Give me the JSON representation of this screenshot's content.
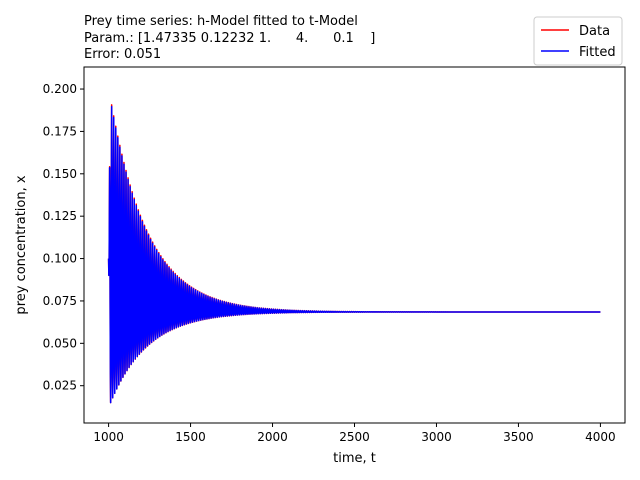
{
  "chart_data": {
    "type": "line",
    "title_lines": [
      "Prey time series: h-Model fitted to t-Model",
      "Param.: [1.47335 0.12232 1.      4.      0.1    ]",
      "Error: 0.051"
    ],
    "xlabel": "time, t",
    "ylabel": "prey concentration, x",
    "xlim": [
      850,
      4150
    ],
    "ylim": [
      0.003,
      0.213
    ],
    "xticks": [
      1000,
      1500,
      2000,
      2500,
      3000,
      3500,
      4000
    ],
    "yticks": [
      0.025,
      0.05,
      0.075,
      0.1,
      0.125,
      0.15,
      0.175,
      0.2
    ],
    "xtick_labels": [
      "1000",
      "1500",
      "2000",
      "2500",
      "3000",
      "3500",
      "4000"
    ],
    "ytick_labels": [
      "0.025",
      "0.050",
      "0.075",
      "0.100",
      "0.125",
      "0.150",
      "0.175",
      "0.200"
    ],
    "grid": false,
    "legend_position": "upper-right outside plot",
    "series": [
      {
        "name": "Data",
        "color": "#ff0000",
        "x_range": [
          1000,
          4000
        ],
        "start_value": 0.1,
        "equilibrium": 0.0685,
        "first_peak": 0.201,
        "first_trough": 0.012,
        "envelope_decay_time": 230,
        "oscillation_period": 12.5
      },
      {
        "name": "Fitted",
        "color": "#0000ff",
        "x_range": [
          1000,
          4000
        ],
        "start_value": 0.1,
        "equilibrium": 0.0685,
        "first_peak": 0.2,
        "first_trough": 0.012,
        "envelope_decay_time": 228,
        "oscillation_period": 12.5
      }
    ]
  }
}
